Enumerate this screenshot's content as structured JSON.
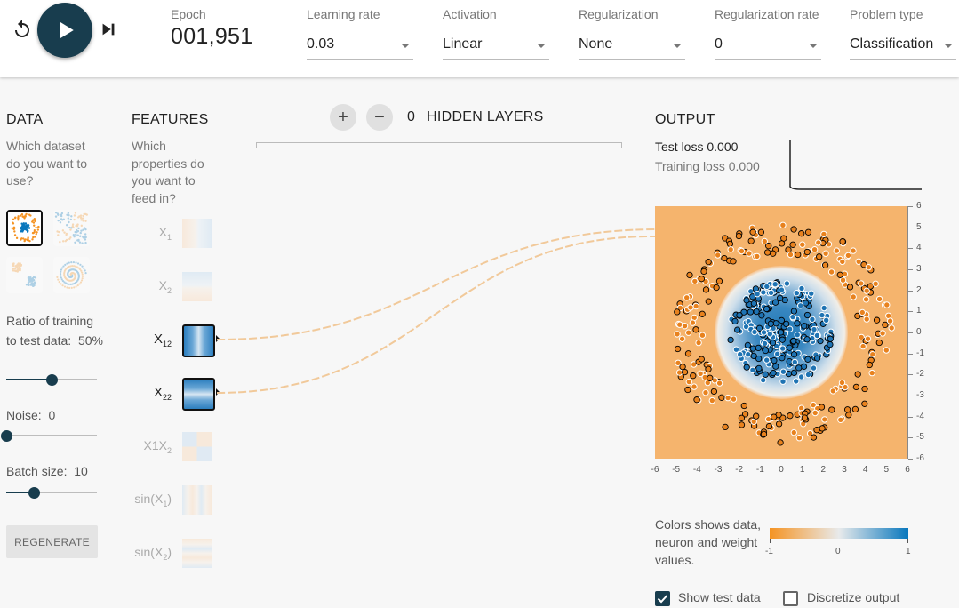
{
  "controls": {
    "reset_icon": "reset-icon",
    "play_icon": "play-icon",
    "step_icon": "step-forward-icon"
  },
  "epoch": {
    "label": "Epoch",
    "value": "001,951"
  },
  "selects": [
    {
      "label": "Learning rate",
      "value": "0.03"
    },
    {
      "label": "Activation",
      "value": "Linear"
    },
    {
      "label": "Regularization",
      "value": "None"
    },
    {
      "label": "Regularization rate",
      "value": "0"
    },
    {
      "label": "Problem type",
      "value": "Classification"
    }
  ],
  "data": {
    "title": "DATA",
    "subtitle": "Which dataset do you want to use?",
    "selected_dataset": "circle",
    "ratio": {
      "label": "Ratio of training to test data:",
      "value": "50%",
      "fraction": 0.5
    },
    "noise": {
      "label": "Noise:",
      "value": "0",
      "fraction": 0.0
    },
    "batch": {
      "label": "Batch size:",
      "value": "10",
      "fraction": 0.3
    },
    "regenerate_label": "REGENERATE"
  },
  "features": {
    "title": "FEATURES",
    "subtitle": "Which properties do you want to feed in?",
    "items": [
      {
        "id": "x1",
        "base": "X",
        "sub": "1",
        "tail": "",
        "active": false
      },
      {
        "id": "x2",
        "base": "X",
        "sub": "2",
        "tail": "",
        "active": false
      },
      {
        "id": "x1sq",
        "base": "X",
        "sub": "1",
        "tail": "2",
        "active": true
      },
      {
        "id": "x2sq",
        "base": "X",
        "sub": "2",
        "tail": "2",
        "active": true
      },
      {
        "id": "x1x2",
        "base": "X1X",
        "sub": "2",
        "tail": "",
        "active": false
      },
      {
        "id": "sinx1",
        "base": "sin(X",
        "sub": "1",
        "tail": ")",
        "active": false
      },
      {
        "id": "sinx2",
        "base": "sin(X",
        "sub": "2",
        "tail": ")",
        "active": false
      }
    ]
  },
  "hidden_layers": {
    "count": "0",
    "label": "HIDDEN LAYERS",
    "plus": "+",
    "minus": "−"
  },
  "output": {
    "title": "OUTPUT",
    "test_loss_label": "Test loss",
    "test_loss_value": "0.000",
    "train_loss_label": "Training loss",
    "train_loss_value": "0.000",
    "axis_ticks_x": [
      "-6",
      "-5",
      "-4",
      "-3",
      "-2",
      "-1",
      "0",
      "1",
      "2",
      "3",
      "4",
      "5",
      "6"
    ],
    "axis_ticks_y": [
      "6",
      "5",
      "4",
      "3",
      "2",
      "1",
      "0",
      "-1",
      "-2",
      "-3",
      "-4",
      "-5",
      "-6"
    ],
    "legend_text": "Colors shows data, neuron and weight values.",
    "legend_ticks": [
      "-1",
      "0",
      "1"
    ],
    "show_test_label": "Show test data",
    "show_test_checked": true,
    "discretize_label": "Discretize output",
    "discretize_checked": false
  },
  "colors": {
    "orange": "#f59322",
    "blue": "#0877bd",
    "dark": "#183d4e"
  }
}
